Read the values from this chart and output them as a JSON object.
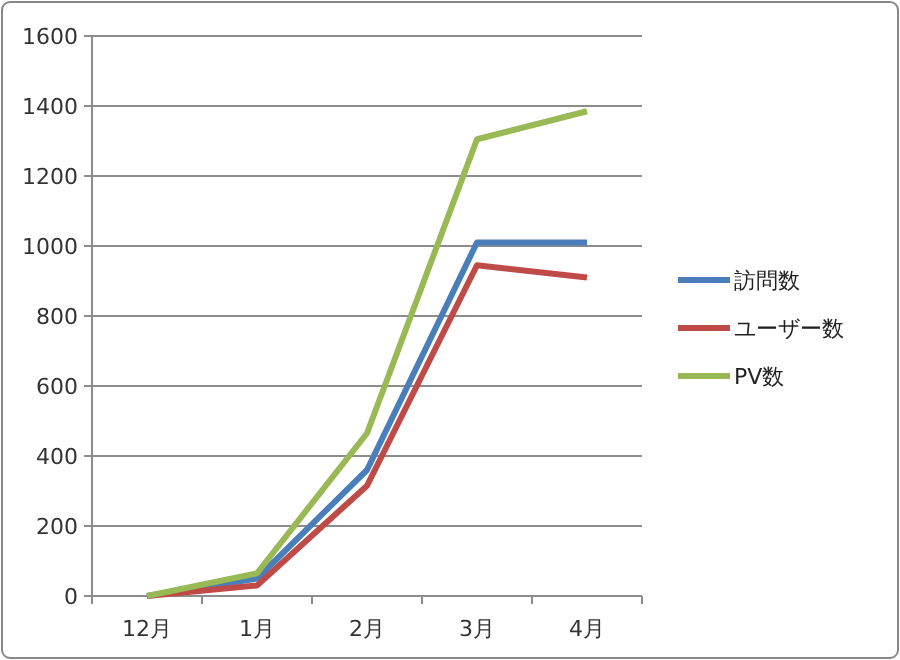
{
  "chart_data": {
    "type": "line",
    "categories": [
      "12月",
      "1月",
      "2月",
      "3月",
      "4月"
    ],
    "series": [
      {
        "name": "訪問数",
        "color": "#4a7ebb",
        "values": [
          0,
          50,
          360,
          1010,
          1010
        ]
      },
      {
        "name": "ユーザー数",
        "color": "#be4b48",
        "values": [
          0,
          30,
          315,
          945,
          910
        ]
      },
      {
        "name": "PV数",
        "color": "#98b954",
        "values": [
          0,
          65,
          465,
          1305,
          1385
        ]
      }
    ],
    "ylim": [
      0,
      1600
    ],
    "yticks": [
      0,
      200,
      400,
      600,
      800,
      1000,
      1200,
      1400,
      1600
    ],
    "grid": "y",
    "legend": "right",
    "marker": "none",
    "line_style": "solid"
  }
}
